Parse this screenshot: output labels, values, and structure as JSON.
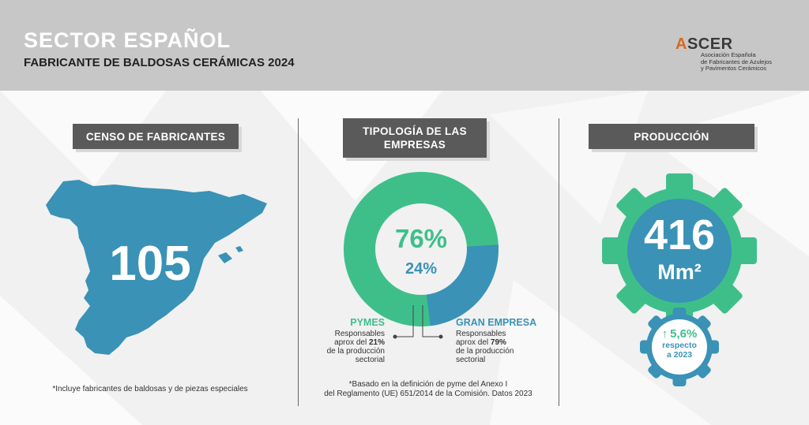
{
  "header": {
    "title": "SECTOR ESPAÑOL",
    "subtitle": "FABRICANTE DE BALDOSAS CERÁMICAS 2024"
  },
  "logo": {
    "accent_letter": "A",
    "rest": "SCER",
    "line1": "Asociación Española",
    "line2": "de Fabricantes de Azulejos",
    "line3": "y Pavimentos Cerámicos"
  },
  "censo": {
    "label": "CENSO DE FABRICANTES",
    "value": "105",
    "note": "*Incluye fabricantes de baldosas y de piezas especiales"
  },
  "tipologia": {
    "label_line1": "TIPOLOGÍA DE LAS",
    "label_line2": "EMPRESAS",
    "pct_pymes": "76%",
    "pct_gran": "24%",
    "share_pymes": 0.76,
    "share_gran": 0.24,
    "pymes_title": "PYMES",
    "pymes_desc1": "Responsables",
    "pymes_desc2a": "aprox del ",
    "pymes_desc2b": "21%",
    "pymes_desc3": "de la producción",
    "pymes_desc4": "sectorial",
    "gran_title": "GRAN EMPRESA",
    "gran_desc1": "Responsables",
    "gran_desc2a": "aprox del ",
    "gran_desc2b": "79%",
    "gran_desc3": "de la producción",
    "gran_desc4": "sectorial",
    "note_line1": "*Basado en la definición de pyme del Anexo I",
    "note_line2": "del Reglamento (UE) 651/2014 de la Comisión. Datos 2023"
  },
  "produccion": {
    "label": "PRODUCCIÓN",
    "value": "416",
    "unit": "Mm²",
    "change": "5,6%",
    "change_line1": "respecto",
    "change_line2": "a 2023"
  },
  "colors": {
    "green": "#3ebf8a",
    "blue": "#3a92b6",
    "dark_gray": "#5a5a5a",
    "orange": "#d9691f"
  }
}
